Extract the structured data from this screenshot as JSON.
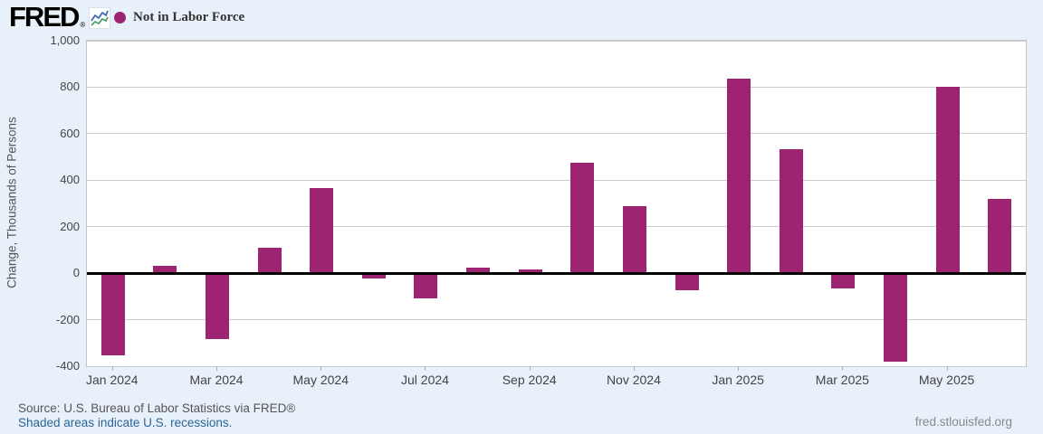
{
  "header": {
    "logo_text": "FRED",
    "registered_mark": "®",
    "legend": {
      "marker_color": "#9d2473",
      "label": "Not in Labor Force"
    }
  },
  "chart_data": {
    "type": "bar",
    "title": "",
    "series": [
      {
        "name": "Not in Labor Force",
        "values": [
          -350,
          30,
          -280,
          110,
          365,
          -20,
          -105,
          25,
          15,
          475,
          290,
          -70,
          835,
          535,
          -60,
          -375,
          800,
          320
        ]
      }
    ],
    "categories": [
      "Jan 2024",
      "Feb 2024",
      "Mar 2024",
      "Apr 2024",
      "May 2024",
      "Jun 2024",
      "Jul 2024",
      "Aug 2024",
      "Sep 2024",
      "Oct 2024",
      "Nov 2024",
      "Dec 2024",
      "Jan 2025",
      "Feb 2025",
      "Mar 2025",
      "Apr 2025",
      "May 2025",
      "Jun 2025"
    ],
    "x_tick_labels": [
      "Jan 2024",
      "Mar 2024",
      "May 2024",
      "Jul 2024",
      "Sep 2024",
      "Nov 2024",
      "Jan 2025",
      "Mar 2025",
      "May 2025"
    ],
    "xlabel": "",
    "ylabel": "Change, Thousands of Persons",
    "ylim": [
      -400,
      1000
    ],
    "ytick_step": 200,
    "bar_color": "#9d2473",
    "grid": true,
    "zero_line": true,
    "legend_position": "top-left"
  },
  "footer": {
    "source": "Source: U.S. Bureau of Labor Statistics via FRED®",
    "recession_note": "Shaded areas indicate U.S. recessions.",
    "site": "fred.stlouisfed.org"
  },
  "colors": {
    "background": "#e8f1f9",
    "plot_background": "#ffffff",
    "bar": "#9d2473",
    "gridline": "#cccccc",
    "zero_line": "#000000",
    "axis_text": "#444444",
    "link_blue": "#2a6496",
    "muted_text": "#555555",
    "spark_blue": "#3d6fb5",
    "spark_green": "#4da06c"
  }
}
